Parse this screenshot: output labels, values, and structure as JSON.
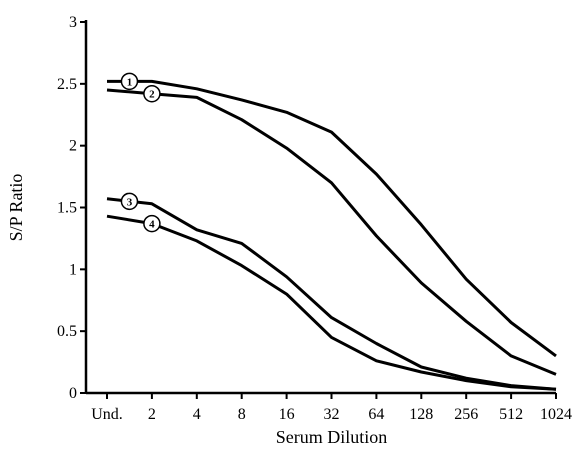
{
  "chart_data": {
    "type": "line",
    "title": "",
    "xlabel": "Serum Dilution",
    "ylabel": "S/P Ratio",
    "categories": [
      "Und.",
      "2",
      "4",
      "8",
      "16",
      "32",
      "64",
      "128",
      "256",
      "512",
      "1024"
    ],
    "yticks": [
      "0",
      "0.5",
      "1",
      "1.5",
      "2",
      "2.5",
      "3"
    ],
    "ylim": [
      0,
      3
    ],
    "grid": false,
    "legend": "none",
    "series": [
      {
        "marker": "1",
        "values": [
          2.52,
          2.52,
          2.46,
          2.37,
          2.27,
          2.11,
          1.77,
          1.36,
          0.92,
          0.57,
          0.3
        ]
      },
      {
        "marker": "2",
        "values": [
          2.45,
          2.42,
          2.39,
          2.21,
          1.98,
          1.7,
          1.27,
          0.89,
          0.58,
          0.3,
          0.15
        ]
      },
      {
        "marker": "3",
        "values": [
          1.57,
          1.53,
          1.32,
          1.21,
          0.94,
          0.61,
          0.4,
          0.21,
          0.12,
          0.06,
          0.03
        ]
      },
      {
        "marker": "4",
        "values": [
          1.43,
          1.37,
          1.23,
          1.03,
          0.8,
          0.45,
          0.26,
          0.17,
          0.1,
          0.05,
          0.03
        ]
      }
    ],
    "colors": {
      "line": "#000000",
      "background": "#ffffff"
    }
  }
}
